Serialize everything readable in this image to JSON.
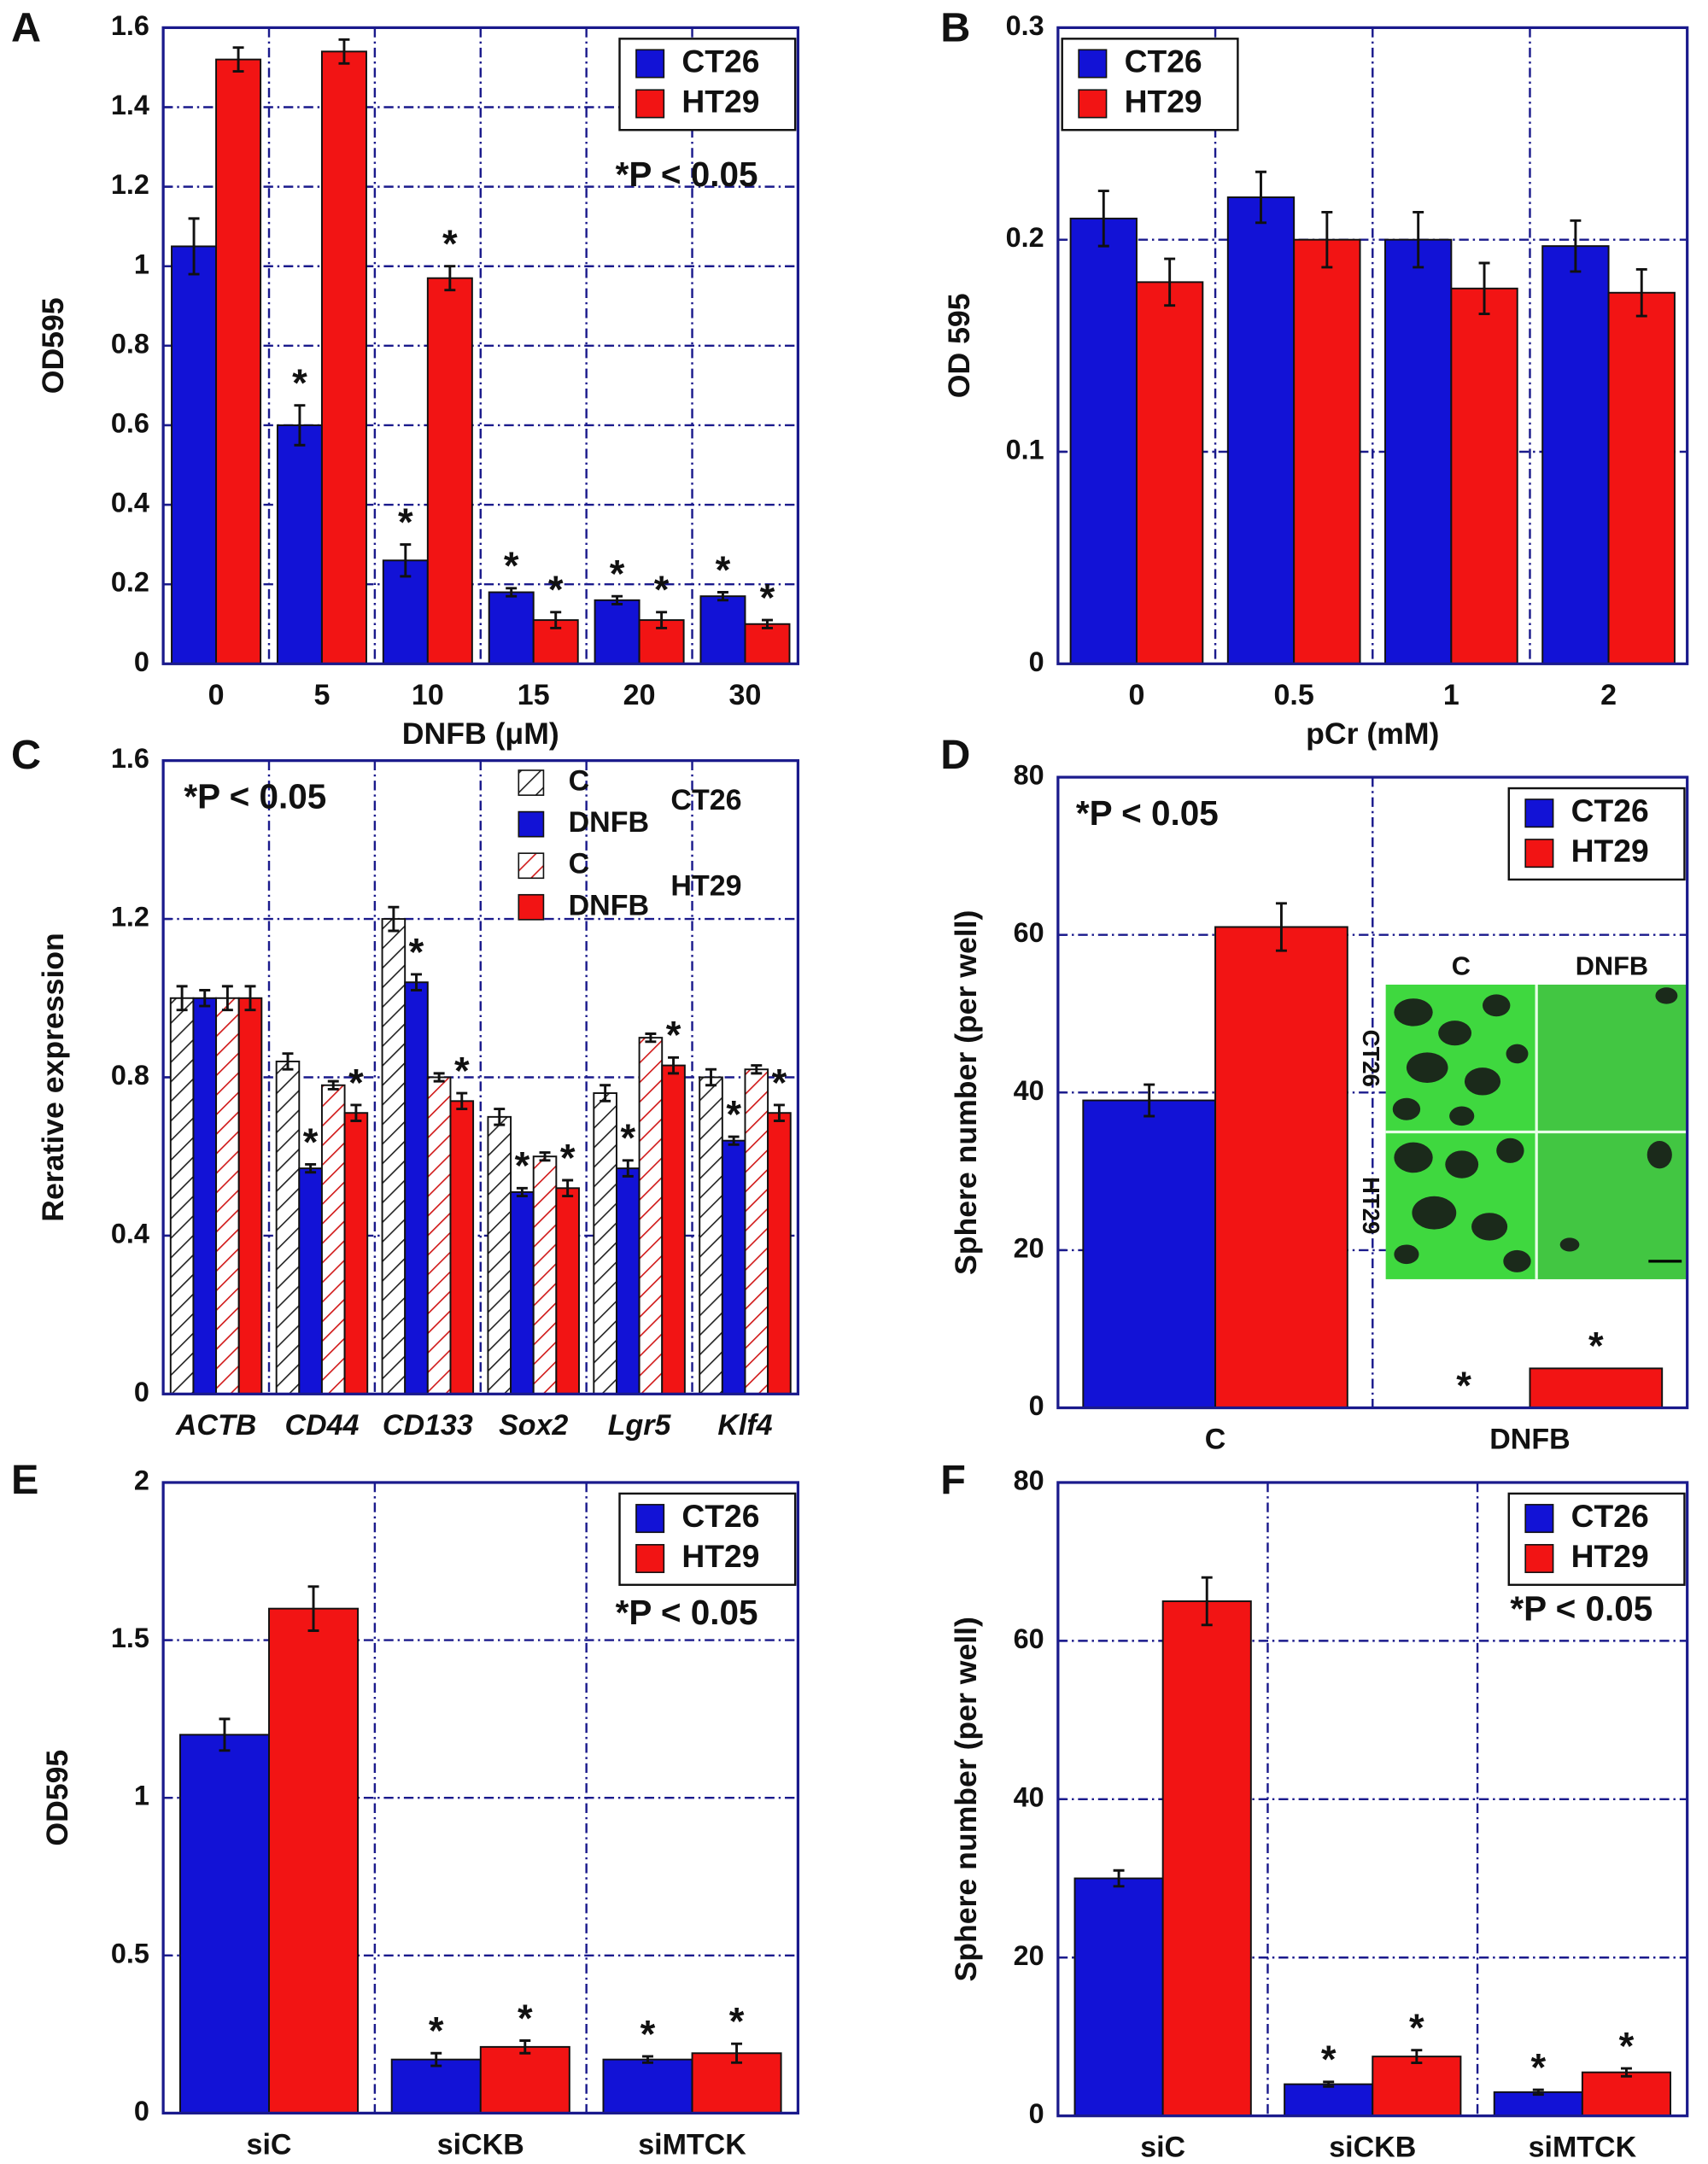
{
  "chart_data": [
    {
      "type": "bar",
      "panel": "A",
      "xlabel": "DNFB (μM)",
      "ylabel": "OD595",
      "annotation": "*P < 0.05",
      "categories": [
        "0",
        "5",
        "10",
        "15",
        "20",
        "30"
      ],
      "series": [
        {
          "name": "CT26",
          "color": "#1212d6",
          "values": [
            1.05,
            0.6,
            0.26,
            0.18,
            0.16,
            0.17
          ],
          "errors": [
            0.07,
            0.05,
            0.04,
            0.01,
            0.01,
            0.01
          ],
          "stars": [
            null,
            "*",
            "*",
            "*",
            "*",
            "*"
          ]
        },
        {
          "name": "HT29",
          "color": "#f21414",
          "values": [
            1.52,
            1.54,
            0.97,
            0.11,
            0.11,
            0.1
          ],
          "errors": [
            0.03,
            0.03,
            0.03,
            0.02,
            0.02,
            0.01
          ],
          "stars": [
            null,
            null,
            "*",
            "*",
            "*",
            "*"
          ]
        }
      ],
      "ylim": [
        0,
        1.6
      ],
      "yticks": [
        0,
        0.2,
        0.4,
        0.6,
        0.8,
        1,
        1.2,
        1.4,
        1.6
      ],
      "grid": true,
      "legend": "upper right"
    },
    {
      "type": "bar",
      "panel": "B",
      "xlabel": "pCr (mM)",
      "ylabel": "OD 595",
      "categories": [
        "0",
        "0.5",
        "1",
        "2"
      ],
      "series": [
        {
          "name": "CT26",
          "color": "#1212d6",
          "values": [
            0.21,
            0.22,
            0.2,
            0.197
          ],
          "errors": [
            0.013,
            0.012,
            0.013,
            0.012
          ]
        },
        {
          "name": "HT29",
          "color": "#f21414",
          "values": [
            0.18,
            0.2,
            0.177,
            0.175
          ],
          "errors": [
            0.011,
            0.013,
            0.012,
            0.011
          ]
        }
      ],
      "ylim": [
        0,
        0.3
      ],
      "yticks": [
        0,
        0.1,
        0.2,
        0.3
      ],
      "grid": true,
      "legend": "upper left"
    },
    {
      "type": "bar",
      "panel": "C",
      "ylabel": "Rerative expression",
      "annotation": "*P < 0.05",
      "category_style": "italic",
      "categories": [
        "ACTB",
        "CD44",
        "CD133",
        "Sox2",
        "Lgr5",
        "Klf4"
      ],
      "legend_groups": [
        "CT26",
        "HT29"
      ],
      "series": [
        {
          "name": "C",
          "color": "#222222",
          "hatch": true,
          "values": [
            1.0,
            0.84,
            1.2,
            0.7,
            0.76,
            0.8
          ],
          "errors": [
            0.03,
            0.02,
            0.03,
            0.02,
            0.02,
            0.02
          ]
        },
        {
          "name": "DNFB",
          "color": "#1212d6",
          "values": [
            1.0,
            0.57,
            1.04,
            0.51,
            0.57,
            0.64
          ],
          "errors": [
            0.02,
            0.01,
            0.02,
            0.01,
            0.02,
            0.01
          ],
          "stars": [
            null,
            "*",
            "*",
            "*",
            "*",
            "*"
          ]
        },
        {
          "name": "C",
          "color": "#d01818",
          "hatch": true,
          "values": [
            1.0,
            0.78,
            0.8,
            0.6,
            0.9,
            0.82
          ],
          "errors": [
            0.03,
            0.01,
            0.01,
            0.01,
            0.01,
            0.01
          ]
        },
        {
          "name": "DNFB",
          "color": "#f21414",
          "values": [
            1.0,
            0.71,
            0.74,
            0.52,
            0.83,
            0.71
          ],
          "errors": [
            0.03,
            0.02,
            0.02,
            0.02,
            0.02,
            0.02
          ],
          "stars": [
            null,
            "*",
            "*",
            "*",
            "*",
            "*"
          ]
        }
      ],
      "ylim": [
        0,
        1.6
      ],
      "yticks": [
        0,
        0.4,
        0.8,
        1.2,
        1.6
      ],
      "grid": true,
      "legend": "upper right"
    },
    {
      "type": "bar",
      "panel": "D",
      "ylabel": "Sphere number (per well)",
      "annotation": "*P < 0.05",
      "categories": [
        "C",
        "DNFB"
      ],
      "series": [
        {
          "name": "CT26",
          "color": "#1212d6",
          "values": [
            39,
            0
          ],
          "errors": [
            2,
            null
          ],
          "stars": [
            null,
            "*"
          ]
        },
        {
          "name": "HT29",
          "color": "#f21414",
          "values": [
            61,
            5
          ],
          "errors": [
            3,
            null
          ],
          "stars": [
            null,
            "*"
          ]
        }
      ],
      "inset": {
        "columns": [
          "C",
          "DNFB"
        ],
        "rows": [
          "CT26",
          "HT29"
        ]
      },
      "ylim": [
        0,
        80
      ],
      "yticks": [
        0,
        20,
        40,
        60,
        80
      ],
      "grid": true,
      "legend": "upper right"
    },
    {
      "type": "bar",
      "panel": "E",
      "ylabel": "OD595",
      "annotation": "*P < 0.05",
      "categories": [
        "siC",
        "siCKB",
        "siMTCK"
      ],
      "series": [
        {
          "name": "CT26",
          "color": "#1212d6",
          "values": [
            1.2,
            0.17,
            0.17
          ],
          "errors": [
            0.05,
            0.02,
            0.01
          ],
          "stars": [
            null,
            "*",
            "*"
          ]
        },
        {
          "name": "HT29",
          "color": "#f21414",
          "values": [
            1.6,
            0.21,
            0.19
          ],
          "errors": [
            0.07,
            0.02,
            0.03
          ],
          "stars": [
            null,
            "*",
            "*"
          ]
        }
      ],
      "ylim": [
        0,
        2
      ],
      "yticks": [
        0,
        0.5,
        1,
        1.5,
        2
      ],
      "grid": true,
      "legend": "upper right"
    },
    {
      "type": "bar",
      "panel": "F",
      "ylabel": "Sphere number (per well)",
      "annotation": "*P < 0.05",
      "categories": [
        "siC",
        "siCKB",
        "siMTCK"
      ],
      "series": [
        {
          "name": "CT26",
          "color": "#1212d6",
          "values": [
            30,
            4,
            3
          ],
          "errors": [
            1,
            0.3,
            0.3
          ],
          "stars": [
            null,
            "*",
            "*"
          ]
        },
        {
          "name": "HT29",
          "color": "#f21414",
          "values": [
            65,
            7.5,
            5.5
          ],
          "errors": [
            3,
            0.8,
            0.5
          ],
          "stars": [
            null,
            "*",
            "*"
          ]
        }
      ],
      "ylim": [
        0,
        80
      ],
      "yticks": [
        0,
        20,
        40,
        60,
        80
      ],
      "grid": true,
      "legend": "upper right"
    }
  ]
}
